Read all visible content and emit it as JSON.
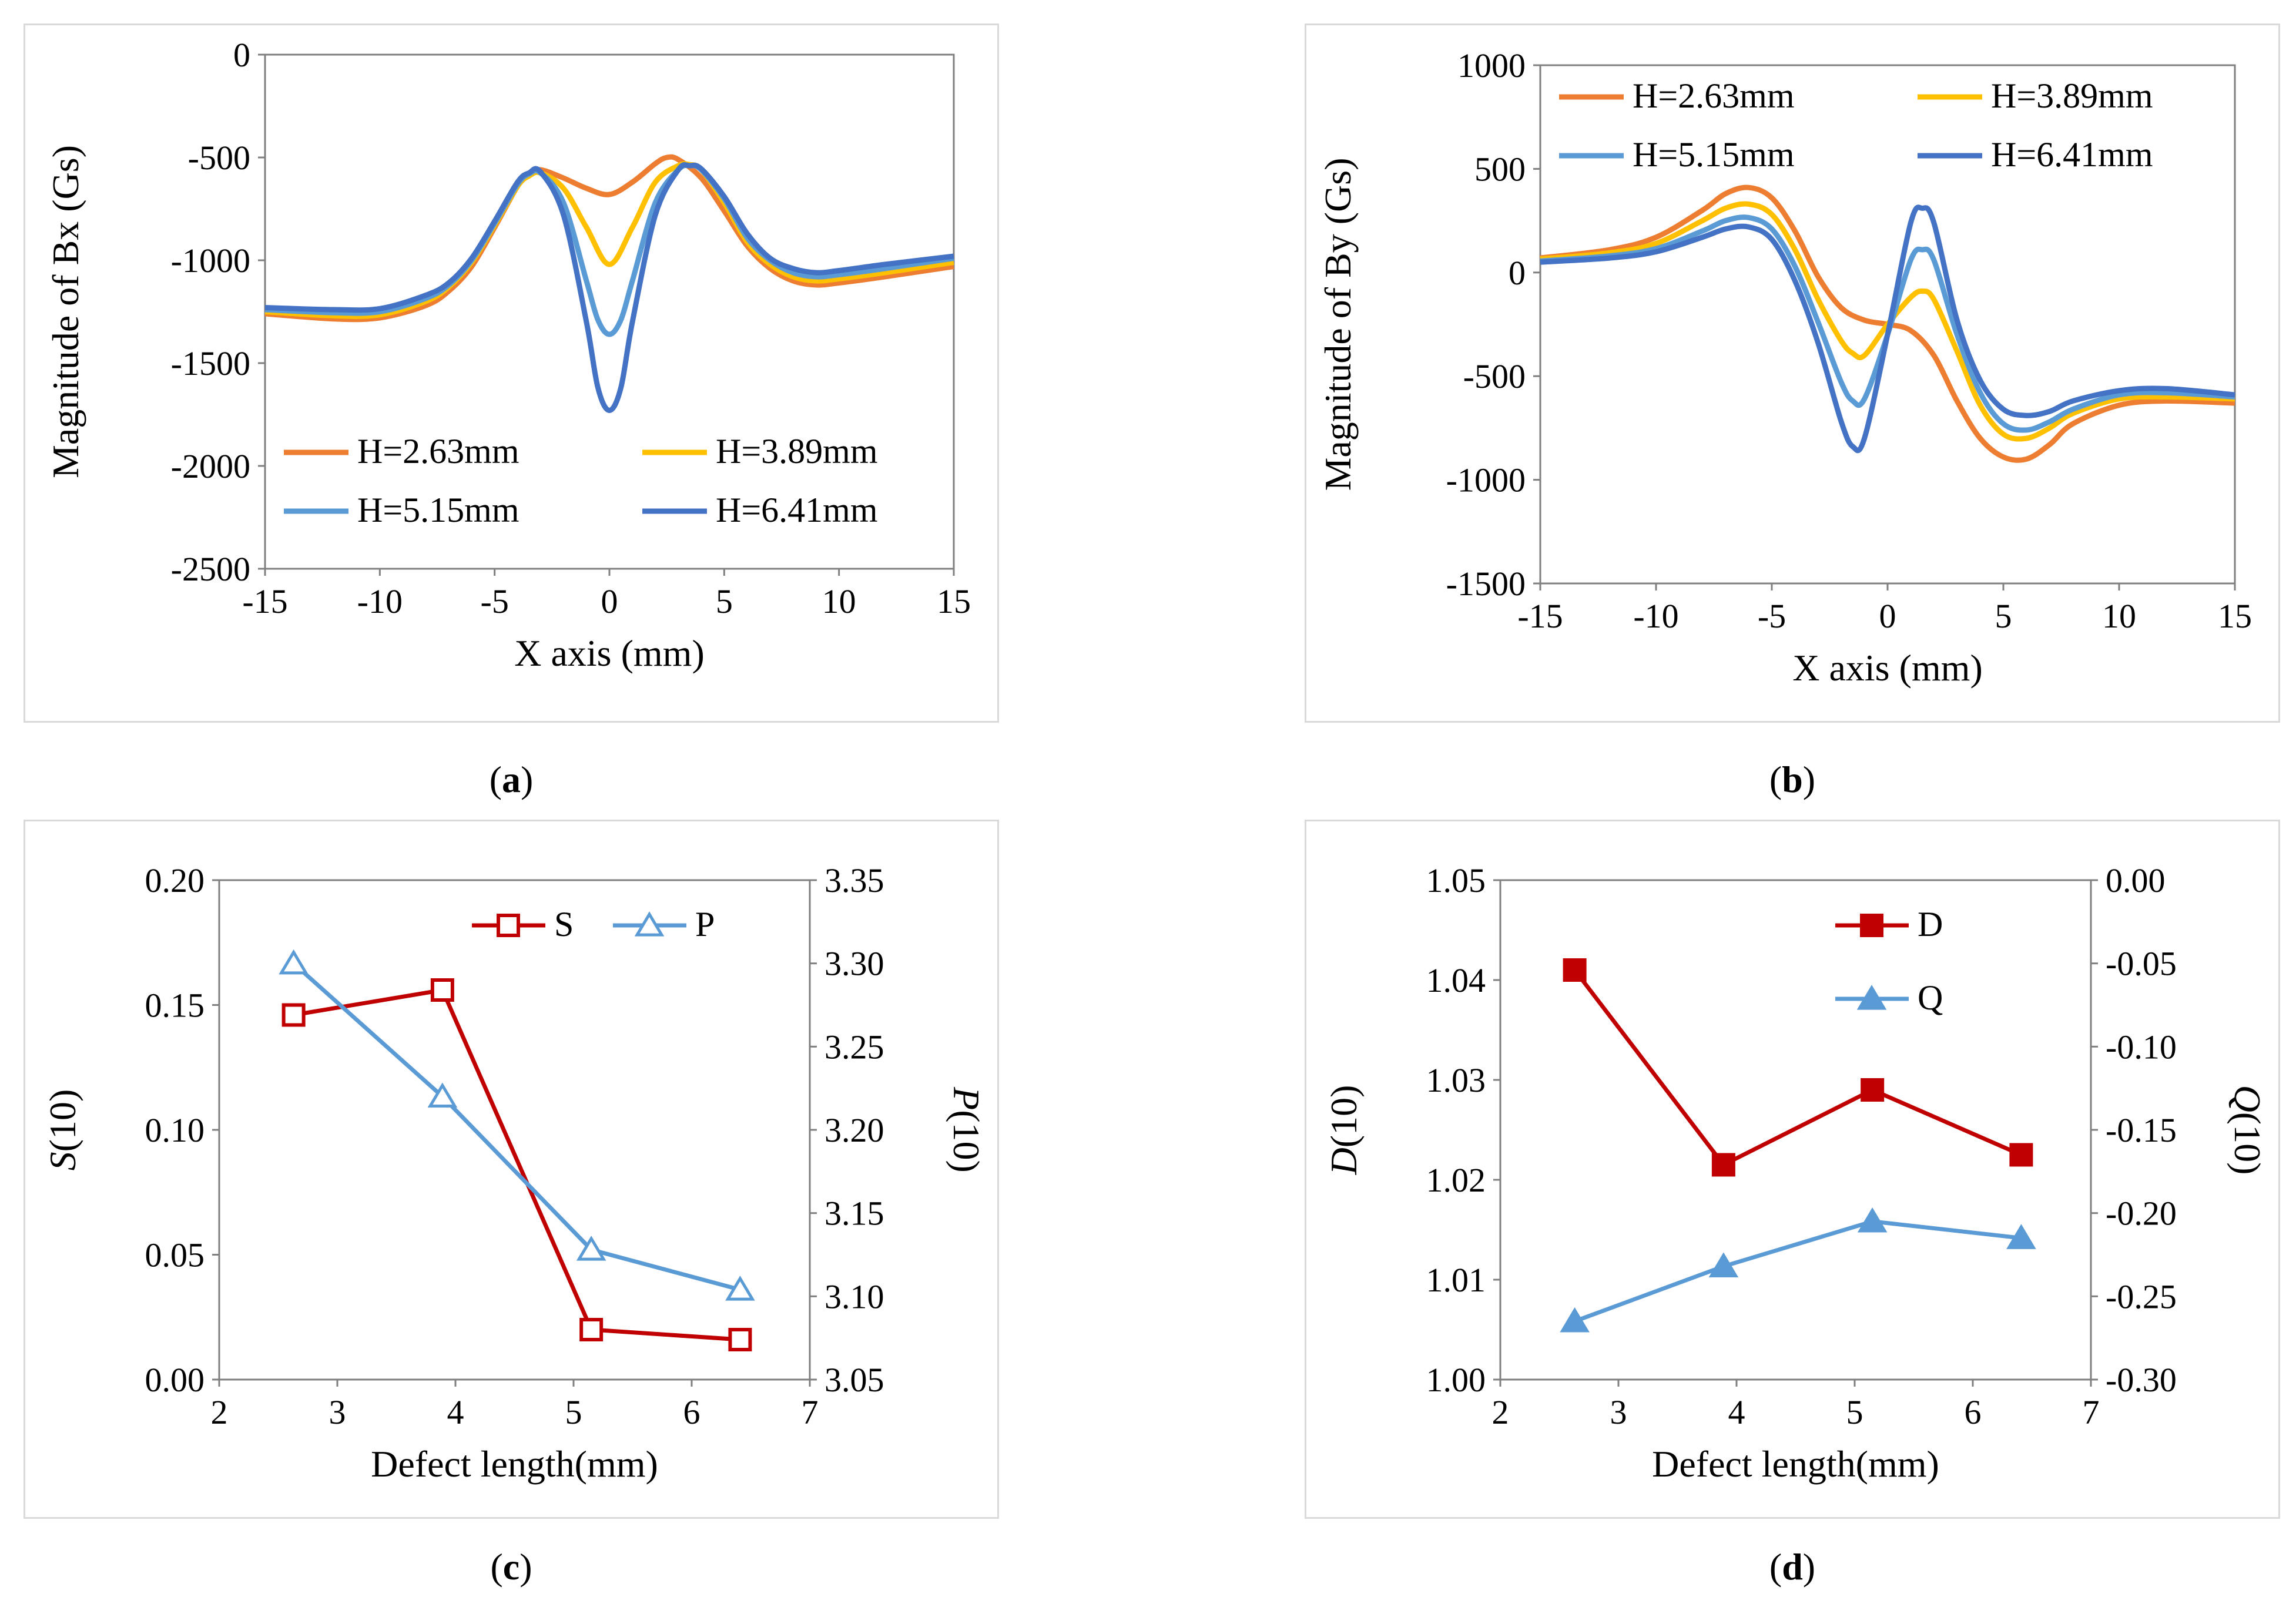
{
  "captions": [
    {
      "letter": "a"
    },
    {
      "letter": "b"
    },
    {
      "letter": "c"
    },
    {
      "letter": "d"
    }
  ],
  "chart_data": [
    {
      "panel": "a",
      "type": "line",
      "xlabel": "X axis (mm)",
      "ylabel": "Magnitude of Bx (Gs)",
      "xlim": [
        -15,
        15
      ],
      "ylim": [
        -2500,
        0
      ],
      "xticks": [
        -15,
        -10,
        -5,
        0,
        5,
        10,
        15
      ],
      "yticks": [
        0,
        -500,
        -1000,
        -1500,
        -2000,
        -2500
      ],
      "legend_position": "lower",
      "grid": false,
      "series": [
        {
          "name": "H=2.63mm",
          "color": "#ED7D31",
          "x": [
            -15,
            -12,
            -10,
            -8,
            -7,
            -6,
            -5,
            -4,
            -3.5,
            -3,
            -2,
            -1,
            0,
            1,
            2,
            2.5,
            3,
            4,
            5,
            6,
            7,
            8,
            9,
            10,
            12,
            15
          ],
          "y": [
            -1260,
            -1285,
            -1280,
            -1220,
            -1150,
            -1030,
            -840,
            -640,
            -580,
            -560,
            -600,
            -650,
            -680,
            -620,
            -530,
            -500,
            -510,
            -600,
            -760,
            -930,
            -1040,
            -1100,
            -1120,
            -1110,
            -1080,
            -1030
          ]
        },
        {
          "name": "H=3.89mm",
          "color": "#FFC000",
          "x": [
            -15,
            -12,
            -10,
            -8,
            -7,
            -6,
            -5,
            -4,
            -3.5,
            -3,
            -2,
            -1,
            0,
            1,
            2,
            3,
            3.5,
            4,
            5,
            6,
            7,
            8,
            9,
            10,
            12,
            15
          ],
          "y": [
            -1250,
            -1270,
            -1265,
            -1200,
            -1130,
            -1010,
            -830,
            -640,
            -590,
            -575,
            -650,
            -840,
            -1020,
            -840,
            -620,
            -540,
            -535,
            -560,
            -720,
            -910,
            -1020,
            -1080,
            -1100,
            -1090,
            -1060,
            -1010
          ]
        },
        {
          "name": "H=5.15mm",
          "color": "#5B9BD5",
          "x": [
            -15,
            -12,
            -10,
            -8,
            -7,
            -6,
            -5,
            -4,
            -3.5,
            -3,
            -2,
            -1,
            -0.5,
            0,
            0.5,
            1,
            2,
            3,
            3.5,
            4,
            5,
            6,
            7,
            8,
            9,
            10,
            12,
            15
          ],
          "y": [
            -1240,
            -1255,
            -1250,
            -1185,
            -1120,
            -1000,
            -820,
            -630,
            -580,
            -575,
            -720,
            -1100,
            -1290,
            -1360,
            -1290,
            -1100,
            -720,
            -560,
            -540,
            -560,
            -700,
            -890,
            -1000,
            -1060,
            -1080,
            -1070,
            -1040,
            -990
          ]
        },
        {
          "name": "H=6.41mm",
          "color": "#4472C4",
          "x": [
            -15,
            -12,
            -10,
            -8,
            -7,
            -6,
            -5,
            -4,
            -3.5,
            -3,
            -2,
            -1,
            -0.5,
            0,
            0.5,
            1,
            2,
            3,
            3.5,
            4,
            5,
            6,
            7,
            8,
            9,
            10,
            12,
            15
          ],
          "y": [
            -1230,
            -1240,
            -1235,
            -1170,
            -1110,
            -990,
            -810,
            -620,
            -575,
            -570,
            -780,
            -1300,
            -1620,
            -1730,
            -1620,
            -1300,
            -780,
            -560,
            -540,
            -555,
            -690,
            -870,
            -990,
            -1040,
            -1060,
            -1050,
            -1020,
            -980
          ]
        }
      ]
    },
    {
      "panel": "b",
      "type": "line",
      "xlabel": "X axis (mm)",
      "ylabel": "Magnitude of By (Gs)",
      "xlim": [
        -15,
        15
      ],
      "ylim": [
        -1500,
        1000
      ],
      "xticks": [
        -15,
        -10,
        -5,
        0,
        5,
        10,
        15
      ],
      "yticks": [
        1000,
        500,
        0,
        -500,
        -1000,
        -1500
      ],
      "legend_position": "top",
      "grid": false,
      "series": [
        {
          "name": "H=2.63mm",
          "color": "#ED7D31",
          "x": [
            -15,
            -12,
            -10,
            -8,
            -7,
            -6,
            -5,
            -4,
            -3,
            -2,
            -1,
            0,
            1,
            2,
            3,
            4,
            5,
            6,
            7,
            8,
            10,
            12,
            15
          ],
          "y": [
            70,
            110,
            170,
            300,
            380,
            410,
            360,
            200,
            -20,
            -170,
            -230,
            -250,
            -280,
            -400,
            -620,
            -800,
            -890,
            -900,
            -830,
            -730,
            -640,
            -620,
            -630
          ]
        },
        {
          "name": "H=3.89mm",
          "color": "#FFC000",
          "x": [
            -15,
            -12,
            -10,
            -8,
            -7,
            -6,
            -5,
            -4,
            -3,
            -2,
            -1.5,
            -1,
            0,
            1,
            1.5,
            2,
            3,
            4,
            5,
            6,
            7,
            8,
            10,
            12,
            15
          ],
          "y": [
            65,
            95,
            140,
            250,
            310,
            330,
            280,
            110,
            -130,
            -330,
            -390,
            -400,
            -250,
            -120,
            -90,
            -130,
            -380,
            -640,
            -780,
            -800,
            -750,
            -680,
            -610,
            -600,
            -610
          ]
        },
        {
          "name": "H=5.15mm",
          "color": "#5B9BD5",
          "x": [
            -15,
            -12,
            -10,
            -8,
            -7,
            -6,
            -5,
            -4,
            -3,
            -2,
            -1.5,
            -1,
            0,
            1,
            1.5,
            2,
            3,
            4,
            5,
            6,
            7,
            8,
            10,
            12,
            15
          ],
          "y": [
            55,
            80,
            115,
            200,
            250,
            265,
            210,
            30,
            -240,
            -530,
            -620,
            -610,
            -300,
            60,
            110,
            60,
            -300,
            -580,
            -730,
            -760,
            -720,
            -660,
            -590,
            -580,
            -600
          ]
        },
        {
          "name": "H=6.41mm",
          "color": "#4472C4",
          "x": [
            -15,
            -12,
            -10,
            -8,
            -7,
            -6,
            -5,
            -4,
            -3,
            -2,
            -1.5,
            -1,
            0,
            1,
            1.5,
            2,
            3,
            4,
            5,
            6,
            7,
            8,
            10,
            12,
            15
          ],
          "y": [
            50,
            70,
            100,
            170,
            210,
            220,
            160,
            -40,
            -340,
            -720,
            -840,
            -800,
            -300,
            240,
            310,
            240,
            -230,
            -520,
            -660,
            -690,
            -670,
            -620,
            -570,
            -560,
            -590
          ]
        }
      ]
    },
    {
      "panel": "c",
      "type": "line",
      "xlabel": "Defect length(mm)",
      "ylabel_left": {
        "italic": "S",
        "rest": "(10)"
      },
      "ylabel_right": {
        "italic": "P",
        "rest": "(10)"
      },
      "xlim": [
        2,
        7
      ],
      "ylim_left": [
        0,
        0.2
      ],
      "ylim_right": [
        3.05,
        3.35
      ],
      "xticks": [
        2,
        3,
        4,
        5,
        6,
        7
      ],
      "yticks_left": [
        "0.00",
        "0.05",
        "0.10",
        "0.15",
        "0.20"
      ],
      "yticks_right": [
        "3.05",
        "3.10",
        "3.15",
        "3.20",
        "3.25",
        "3.30",
        "3.35"
      ],
      "legend_position": "top-right",
      "grid": false,
      "series": [
        {
          "name": "S",
          "axis": "left",
          "color": "#C00000",
          "marker": "square-open",
          "x": [
            2.63,
            3.89,
            5.15,
            6.41
          ],
          "y": [
            0.146,
            0.156,
            0.02,
            0.016
          ]
        },
        {
          "name": "P",
          "axis": "right",
          "color": "#5B9BD5",
          "marker": "triangle-open",
          "x": [
            2.63,
            3.89,
            5.15,
            6.41
          ],
          "y": [
            3.3,
            3.22,
            3.128,
            3.104
          ]
        }
      ]
    },
    {
      "panel": "d",
      "type": "line",
      "xlabel": "Defect length(mm)",
      "ylabel_left": {
        "italic": "D",
        "rest": "(10)"
      },
      "ylabel_right": {
        "italic": "Q",
        "rest": "(10)"
      },
      "xlim": [
        2,
        7
      ],
      "ylim_left": [
        1.0,
        1.05
      ],
      "ylim_right": [
        -0.3,
        0.0
      ],
      "xticks": [
        2,
        3,
        4,
        5,
        6,
        7
      ],
      "yticks_left": [
        "1.00",
        "1.01",
        "1.02",
        "1.03",
        "1.04",
        "1.05"
      ],
      "yticks_right": [
        "-0.30",
        "-0.25",
        "-0.20",
        "-0.15",
        "-0.10",
        "-0.05",
        "0.00"
      ],
      "legend_position": "top-right",
      "grid": false,
      "series": [
        {
          "name": "D",
          "axis": "left",
          "color": "#C00000",
          "marker": "square-filled",
          "x": [
            2.63,
            3.89,
            5.15,
            6.41
          ],
          "y": [
            1.041,
            1.0215,
            1.029,
            1.0225
          ]
        },
        {
          "name": "Q",
          "axis": "right",
          "color": "#5B9BD5",
          "marker": "triangle-filled",
          "x": [
            2.63,
            3.89,
            5.15,
            6.41
          ],
          "y": [
            -0.265,
            -0.232,
            -0.205,
            -0.215
          ]
        }
      ]
    }
  ]
}
